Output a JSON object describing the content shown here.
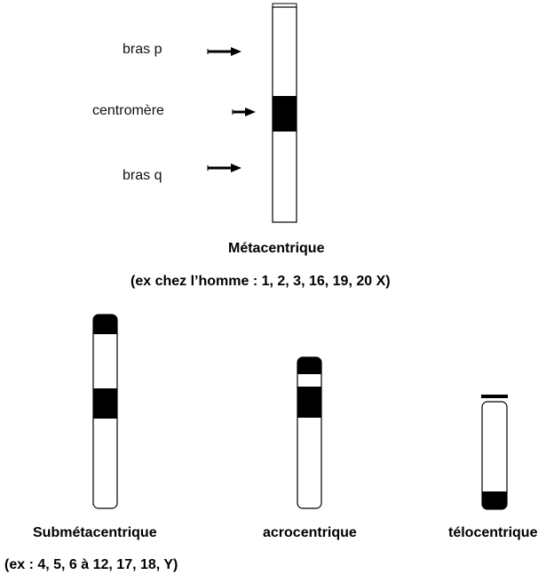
{
  "labels": {
    "p_arm": "bras p",
    "centromere": "centromère",
    "q_arm": "bras q"
  },
  "metacentric": {
    "title": "Métacentrique",
    "example": "(ex chez l’homme : 1, 2, 3, 16, 19, 20 X)"
  },
  "submetacentric": {
    "title": "Submétacentrique",
    "example": "(ex : 4, 5, 6 à 12, 17, 18, Y)"
  },
  "acrocentric": {
    "title": "acrocentrique"
  },
  "telocentric": {
    "title": "télocentrique"
  },
  "colors": {
    "band": "#000000",
    "outline": "#000000",
    "background": "#ffffff"
  }
}
